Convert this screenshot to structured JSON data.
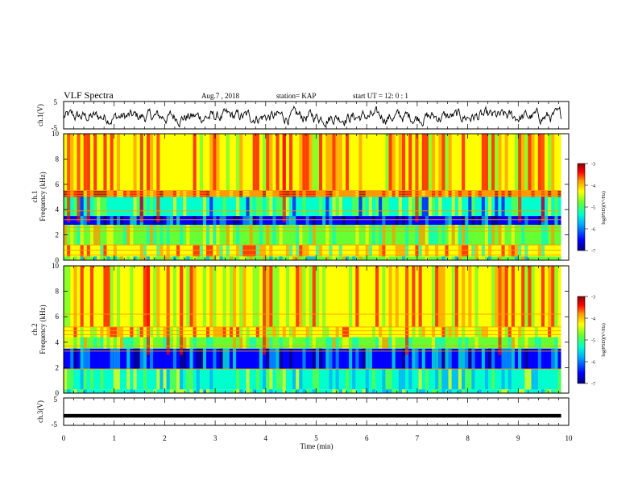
{
  "header": {
    "title": "VLF Spectra",
    "date": "Aug.7  , 2018",
    "station": "station= KAP",
    "start": "start  UT  =   12: 0  : 1"
  },
  "colors": {
    "scale": [
      "#00007f",
      "#0000ff",
      "#00aaff",
      "#00ffcc",
      "#66ff33",
      "#ffff00",
      "#ff9900",
      "#ff0000",
      "#8b0000"
    ],
    "waveform": "#000000",
    "frame": "#000000"
  },
  "chart_data": [
    {
      "type": "line",
      "panel": "ch1-waveform",
      "ylabel": "ch.1(V)",
      "ylim": [
        -5,
        5
      ],
      "yticks": [
        "5",
        "-5"
      ],
      "x_range": [
        0,
        9.85
      ],
      "description_values": "noise-like signal, mostly between -3 and 2 V"
    },
    {
      "type": "heatmap",
      "panel": "ch1-spectrogram",
      "ylabel_top": "ch.1",
      "ylabel": "Frequency (kHz)",
      "ylim": [
        0,
        10
      ],
      "yticks": [
        "0",
        "2",
        "4",
        "6",
        "8",
        "10"
      ],
      "x_range": [
        0,
        9.85
      ],
      "bands": [
        {
          "from": 0,
          "to": 0.3,
          "level": 3.5
        },
        {
          "from": 0.3,
          "to": 1.2,
          "level": 4.5
        },
        {
          "from": 1.2,
          "to": 2.8,
          "level": 3.8
        },
        {
          "from": 2.8,
          "to": 3.5,
          "level": 1.2
        },
        {
          "from": 3.5,
          "to": 5.0,
          "level": 2.8
        },
        {
          "from": 5.0,
          "to": 5.5,
          "level": 5.8
        },
        {
          "from": 5.5,
          "to": 10,
          "level": 5.2
        }
      ],
      "lines": [
        0.4,
        0.8,
        1.2,
        2.3,
        2.6,
        3.2,
        3.9,
        5.1,
        5.3,
        5.5
      ],
      "colorbar": {
        "label": "log(PSD)(V²/Hz)",
        "ticks": [
          "-3",
          "-4",
          "-5",
          "-6",
          "-7"
        ],
        "range": [
          -7,
          -3
        ]
      }
    },
    {
      "type": "heatmap",
      "panel": "ch2-spectrogram",
      "ylabel_top": "ch.2",
      "ylabel": "Frequency (kHz)",
      "ylim": [
        0,
        10
      ],
      "yticks": [
        "0",
        "2",
        "4",
        "6",
        "8",
        "10"
      ],
      "x_range": [
        0,
        9.85
      ],
      "bands": [
        {
          "from": 0,
          "to": 0.3,
          "level": 3.2
        },
        {
          "from": 0.3,
          "to": 1.9,
          "level": 3.2
        },
        {
          "from": 1.9,
          "to": 3.5,
          "level": 1.2
        },
        {
          "from": 3.5,
          "to": 4.4,
          "level": 3.8
        },
        {
          "from": 4.4,
          "to": 5.2,
          "level": 5.0
        },
        {
          "from": 5.2,
          "to": 10,
          "level": 5.0
        }
      ],
      "lines": [
        1.9,
        3.3,
        3.7,
        4.6,
        4.9,
        5.2,
        6.2
      ],
      "colorbar": {
        "label": "log(PSD)(V²/Hz)",
        "ticks": [
          "-3",
          "-4",
          "-5",
          "-6",
          "-7"
        ],
        "range": [
          -7,
          -3
        ]
      }
    },
    {
      "type": "line",
      "panel": "ch3-waveform",
      "ylabel": "ch.3(V)",
      "ylim": [
        -5,
        5
      ],
      "yticks": [
        "5",
        "-5"
      ],
      "x_range": [
        0,
        9.85
      ],
      "value": -1.5,
      "xlabel": "Time  (min)",
      "xlim": [
        0,
        10
      ],
      "xticks": [
        "0",
        "1",
        "2",
        "3",
        "4",
        "5",
        "6",
        "7",
        "8",
        "9",
        "10"
      ]
    }
  ]
}
